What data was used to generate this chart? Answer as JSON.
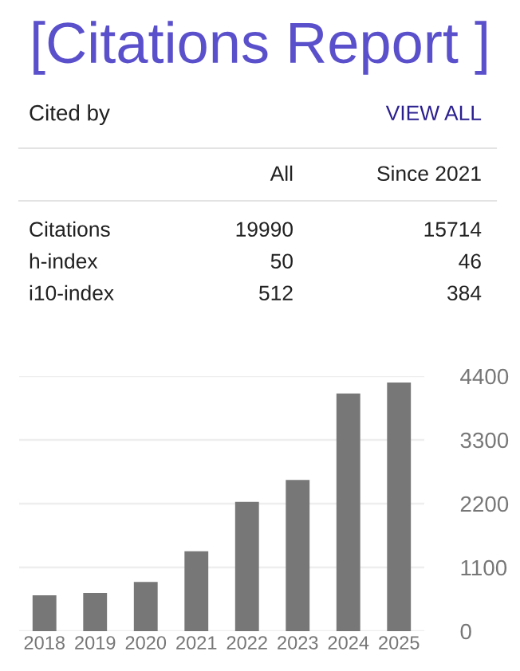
{
  "chart_data": [
    {
      "type": "other",
      "title": "[Citations Report ]",
      "annotations": [
        "Cited by",
        "VIEW ALL"
      ],
      "categories": [
        "Citations",
        "h-index",
        "i10-index"
      ],
      "series": [
        {
          "name": "All",
          "values": [
            19990,
            50,
            512
          ]
        },
        {
          "name": "Since 2021",
          "values": [
            15714,
            46,
            384
          ]
        }
      ],
      "data_labels": true
    },
    {
      "type": "bar",
      "categories": [
        "2018",
        "2019",
        "2020",
        "2021",
        "2022",
        "2023",
        "2024",
        "2025"
      ],
      "values": [
        620,
        660,
        850,
        1380,
        2230,
        2610,
        4100,
        4290
      ],
      "color": "#777777",
      "ylim": [
        0,
        4400
      ],
      "yticks": [
        0,
        1100,
        2200,
        3300,
        4400
      ],
      "grid": "y",
      "legend": false
    }
  ]
}
